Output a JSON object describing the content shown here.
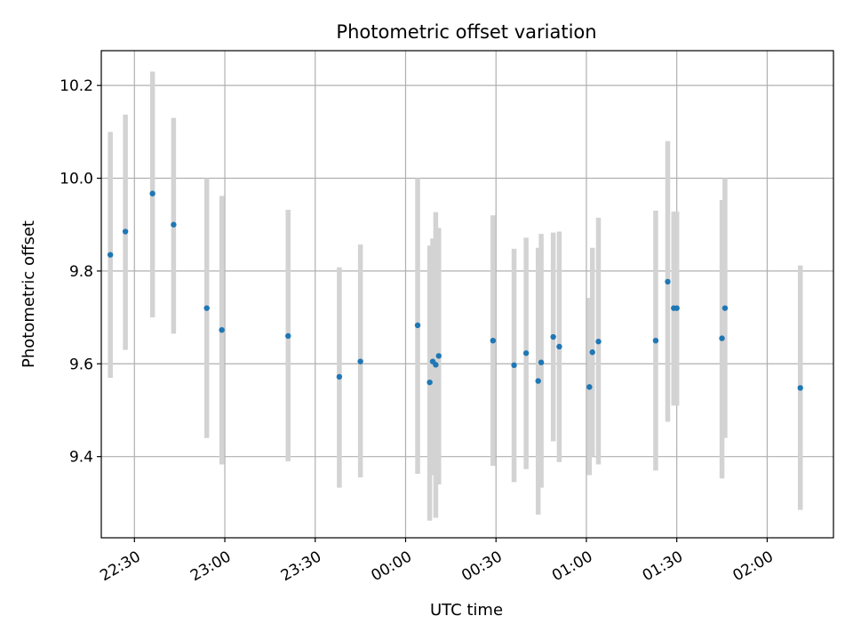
{
  "chart_data": {
    "type": "scatter",
    "title": "Photometric offset variation",
    "xlabel": "UTC time",
    "ylabel": "Photometric offset",
    "x_axis_kind": "time",
    "xlim": [
      "22:19",
      "02:22"
    ],
    "ylim": [
      9.225,
      10.275
    ],
    "x_ticks": [
      "22:30",
      "23:00",
      "23:30",
      "00:00",
      "00:30",
      "01:00",
      "01:30",
      "02:00"
    ],
    "y_ticks": [
      9.4,
      9.6,
      9.8,
      10.0,
      10.2
    ],
    "y_tick_labels": [
      "9.4",
      "9.6",
      "9.8",
      "10.0",
      "10.2"
    ],
    "grid": true,
    "colors": {
      "points": "#1f77b4",
      "errorbars": "#d3d3d3",
      "grid": "#b0b0b0"
    },
    "series": [
      {
        "points": [
          {
            "x": "22:22",
            "y": 9.835,
            "yerr_low": 9.57,
            "yerr_high": 10.1
          },
          {
            "x": "22:27",
            "y": 9.885,
            "yerr_low": 9.63,
            "yerr_high": 10.137
          },
          {
            "x": "22:36",
            "y": 9.967,
            "yerr_low": 9.7,
            "yerr_high": 10.23
          },
          {
            "x": "22:43",
            "y": 9.9,
            "yerr_low": 9.665,
            "yerr_high": 10.13
          },
          {
            "x": "22:54",
            "y": 9.72,
            "yerr_low": 9.44,
            "yerr_high": 10.0
          },
          {
            "x": "22:59",
            "y": 9.673,
            "yerr_low": 9.383,
            "yerr_high": 9.962
          },
          {
            "x": "23:21",
            "y": 9.66,
            "yerr_low": 9.39,
            "yerr_high": 9.932
          },
          {
            "x": "23:38",
            "y": 9.572,
            "yerr_low": 9.333,
            "yerr_high": 9.808
          },
          {
            "x": "23:45",
            "y": 9.605,
            "yerr_low": 9.355,
            "yerr_high": 9.857
          },
          {
            "x": "00:04",
            "y": 9.683,
            "yerr_low": 9.363,
            "yerr_high": 10.0
          },
          {
            "x": "00:08",
            "y": 9.56,
            "yerr_low": 9.262,
            "yerr_high": 9.855
          },
          {
            "x": "00:09",
            "y": 9.605,
            "yerr_low": 9.36,
            "yerr_high": 9.87
          },
          {
            "x": "00:10",
            "y": 9.598,
            "yerr_low": 9.268,
            "yerr_high": 9.927
          },
          {
            "x": "00:11",
            "y": 9.617,
            "yerr_low": 9.34,
            "yerr_high": 9.893
          },
          {
            "x": "00:29",
            "y": 9.65,
            "yerr_low": 9.38,
            "yerr_high": 9.92
          },
          {
            "x": "00:36",
            "y": 9.597,
            "yerr_low": 9.345,
            "yerr_high": 9.848
          },
          {
            "x": "00:40",
            "y": 9.623,
            "yerr_low": 9.373,
            "yerr_high": 9.872
          },
          {
            "x": "00:44",
            "y": 9.563,
            "yerr_low": 9.275,
            "yerr_high": 9.85
          },
          {
            "x": "00:45",
            "y": 9.603,
            "yerr_low": 9.333,
            "yerr_high": 9.88
          },
          {
            "x": "00:49",
            "y": 9.658,
            "yerr_low": 9.433,
            "yerr_high": 9.883
          },
          {
            "x": "00:51",
            "y": 9.637,
            "yerr_low": 9.388,
            "yerr_high": 9.885
          },
          {
            "x": "01:01",
            "y": 9.55,
            "yerr_low": 9.36,
            "yerr_high": 9.742
          },
          {
            "x": "01:02",
            "y": 9.625,
            "yerr_low": 9.4,
            "yerr_high": 9.85
          },
          {
            "x": "01:04",
            "y": 9.648,
            "yerr_low": 9.383,
            "yerr_high": 9.915
          },
          {
            "x": "01:23",
            "y": 9.65,
            "yerr_low": 9.37,
            "yerr_high": 9.93
          },
          {
            "x": "01:27",
            "y": 9.777,
            "yerr_low": 9.475,
            "yerr_high": 10.08
          },
          {
            "x": "01:29",
            "y": 9.72,
            "yerr_low": 9.51,
            "yerr_high": 9.928
          },
          {
            "x": "01:30",
            "y": 9.72,
            "yerr_low": 9.51,
            "yerr_high": 9.928
          },
          {
            "x": "01:45",
            "y": 9.655,
            "yerr_low": 9.353,
            "yerr_high": 9.953
          },
          {
            "x": "01:46",
            "y": 9.72,
            "yerr_low": 9.44,
            "yerr_high": 10.0
          },
          {
            "x": "02:11",
            "y": 9.548,
            "yerr_low": 9.285,
            "yerr_high": 9.812
          }
        ]
      }
    ]
  }
}
